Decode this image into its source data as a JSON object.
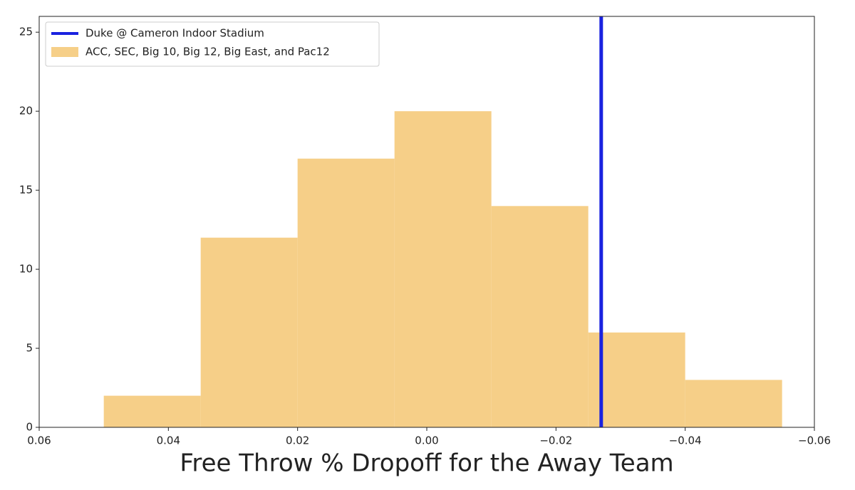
{
  "chart_data": {
    "type": "histogram",
    "xlabel": "Free Throw % Dropoff for the Away Team",
    "bins": [
      -0.055,
      -0.04,
      -0.025,
      -0.01,
      0.005,
      0.02,
      0.035,
      0.05
    ],
    "series": [
      {
        "name": "ACC, SEC, Big 10, Big 12, Big East, and Pac12",
        "color": "#f6cf88",
        "values": [
          3,
          6,
          14,
          20,
          17,
          12,
          2
        ]
      }
    ],
    "vline": {
      "name": "Duke @ Cameron Indoor Stadium",
      "color": "#1a22e0",
      "x": -0.027
    },
    "xlim": [
      0.06,
      -0.06
    ],
    "xticks": [
      0.06,
      0.04,
      0.02,
      {
        "value": 0.0,
        "label": "0.00"
      },
      {
        "value": -0.02,
        "label": "−0.02"
      },
      {
        "value": -0.04,
        "label": "−0.04"
      },
      {
        "value": -0.06,
        "label": "−0.06"
      }
    ],
    "ylim": [
      0,
      26
    ],
    "yticks": [
      0,
      5,
      10,
      15,
      20,
      25
    ],
    "legend": "upper left"
  }
}
